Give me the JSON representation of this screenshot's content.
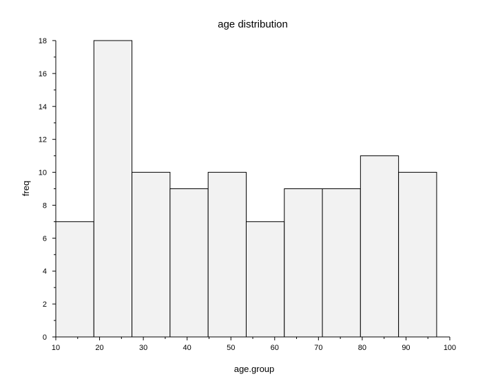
{
  "chart_data": {
    "type": "bar",
    "title": "age distribution",
    "xlabel": "age.group",
    "ylabel": "freq",
    "bins": [
      {
        "start": 10.0,
        "end": 18.7,
        "value": 7
      },
      {
        "start": 18.7,
        "end": 27.4,
        "value": 18
      },
      {
        "start": 27.4,
        "end": 36.1,
        "value": 10
      },
      {
        "start": 36.1,
        "end": 44.8,
        "value": 9
      },
      {
        "start": 44.8,
        "end": 53.5,
        "value": 10
      },
      {
        "start": 53.5,
        "end": 62.2,
        "value": 7
      },
      {
        "start": 62.2,
        "end": 70.9,
        "value": 9
      },
      {
        "start": 70.9,
        "end": 79.6,
        "value": 9
      },
      {
        "start": 79.6,
        "end": 88.3,
        "value": 11
      },
      {
        "start": 88.3,
        "end": 97.0,
        "value": 10
      }
    ],
    "xlim": [
      10,
      100
    ],
    "ylim": [
      0,
      18
    ],
    "xticks": [
      "10",
      "20",
      "30",
      "40",
      "50",
      "60",
      "70",
      "80",
      "90",
      "100"
    ],
    "yticks": [
      "0",
      "2",
      "4",
      "6",
      "8",
      "10",
      "12",
      "14",
      "16",
      "18"
    ],
    "grid": false,
    "bar_fill": "#f2f2f2",
    "bar_edge": "#000000"
  }
}
